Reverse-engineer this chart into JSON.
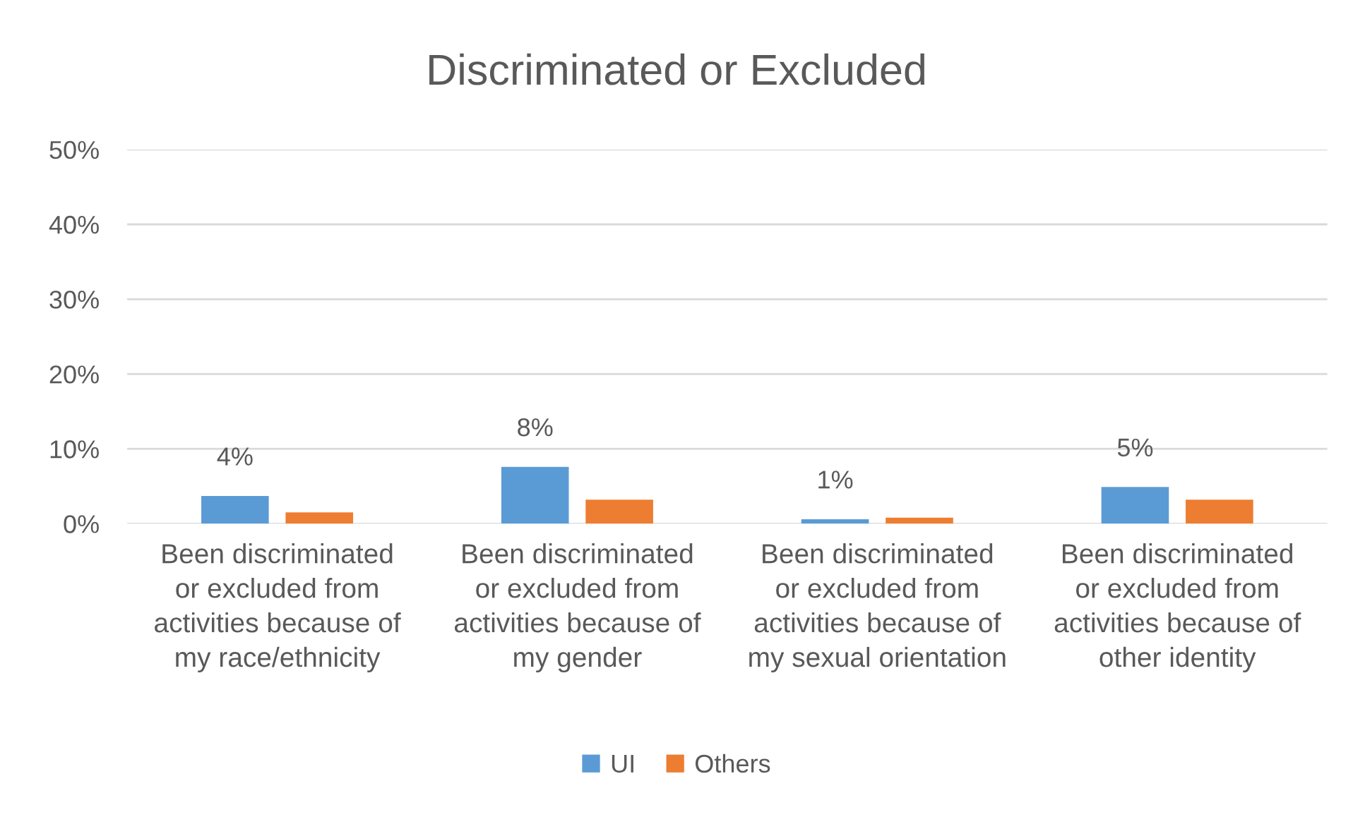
{
  "chart_data": {
    "type": "bar",
    "title": "Discriminated or Excluded",
    "categories": [
      "Been discriminated or excluded from activities because of my race/ethnicity",
      "Been discriminated or excluded from activities because of my gender",
      "Been discriminated or excluded from activities because of my sexual orientation",
      "Been discriminated or excluded from activities because of other identity"
    ],
    "series": [
      {
        "name": "UI",
        "color": "#5b9bd5",
        "values": [
          3.7,
          7.6,
          0.6,
          4.9
        ],
        "value_labels": [
          "4%",
          "8%",
          "1%",
          "5%"
        ]
      },
      {
        "name": "Others",
        "color": "#ed7d31",
        "values": [
          1.5,
          3.2,
          0.8,
          3.2
        ]
      }
    ],
    "ylim": [
      0,
      50
    ],
    "yticks": [
      {
        "value": 0,
        "label": "0%"
      },
      {
        "value": 10,
        "label": "10%"
      },
      {
        "value": 20,
        "label": "20%"
      },
      {
        "value": 30,
        "label": "30%"
      },
      {
        "value": 40,
        "label": "40%"
      },
      {
        "value": 50,
        "label": "50%"
      }
    ],
    "grid": "y",
    "legend": "bottom"
  }
}
